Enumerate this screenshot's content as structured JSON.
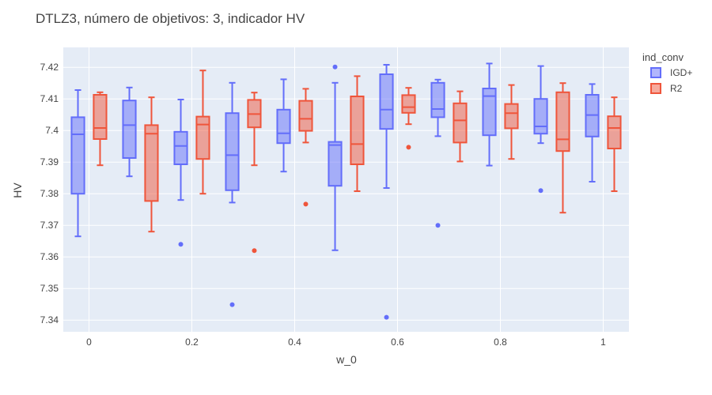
{
  "chart_data": {
    "type": "box",
    "title": "DTLZ3, número de objetivos: 3, indicador HV",
    "xlabel": "w_0",
    "ylabel": "HV",
    "x_ticks": [
      0,
      0.2,
      0.4,
      0.6,
      0.8,
      1
    ],
    "x_tick_labels": [
      "0",
      "0.2",
      "0.4",
      "0.6",
      "0.8",
      "1"
    ],
    "y_ticks": [
      7.34,
      7.35,
      7.36,
      7.37,
      7.38,
      7.39,
      7.4,
      7.41,
      7.42
    ],
    "y_tick_labels": [
      "7.34",
      "7.35",
      "7.36",
      "7.37",
      "7.38",
      "7.39",
      "7.4",
      "7.41",
      "7.42"
    ],
    "xlim": [
      -0.05,
      1.05
    ],
    "ylim": [
      7.3363,
      7.4263
    ],
    "grid": true,
    "legend": {
      "title": "ind_conv",
      "position": "top-right"
    },
    "categories": [
      0,
      0.1,
      0.2,
      0.3,
      0.4,
      0.5,
      0.6,
      0.7,
      0.8,
      0.9,
      1
    ],
    "series": [
      {
        "name": "IGD+",
        "color": "#636EFA",
        "fill": "rgba(99,110,250,0.5)",
        "boxes": [
          {
            "x": 0,
            "lower": 7.3665,
            "q1": 7.38,
            "median": 7.3988,
            "q3": 7.4042,
            "upper": 7.4128,
            "outliers": []
          },
          {
            "x": 0.1,
            "lower": 7.3855,
            "q1": 7.3913,
            "median": 7.4017,
            "q3": 7.4095,
            "upper": 7.4136,
            "outliers": []
          },
          {
            "x": 0.2,
            "lower": 7.378,
            "q1": 7.3893,
            "median": 7.3951,
            "q3": 7.3996,
            "upper": 7.4098,
            "outliers": [
              7.364
            ]
          },
          {
            "x": 0.3,
            "lower": 7.3772,
            "q1": 7.3811,
            "median": 7.3922,
            "q3": 7.4055,
            "upper": 7.4151,
            "outliers": [
              7.3449
            ]
          },
          {
            "x": 0.4,
            "lower": 7.387,
            "q1": 7.396,
            "median": 7.3991,
            "q3": 7.4066,
            "upper": 7.4162,
            "outliers": []
          },
          {
            "x": 0.5,
            "lower": 7.3621,
            "q1": 7.3825,
            "median": 7.3954,
            "q3": 7.3964,
            "upper": 7.4151,
            "outliers": [
              7.4201
            ]
          },
          {
            "x": 0.6,
            "lower": 7.3818,
            "q1": 7.4005,
            "median": 7.4066,
            "q3": 7.4178,
            "upper": 7.4208,
            "outliers": [
              7.3409
            ]
          },
          {
            "x": 0.7,
            "lower": 7.3982,
            "q1": 7.4042,
            "median": 7.4068,
            "q3": 7.4151,
            "upper": 7.4161,
            "outliers": [
              7.37
            ]
          },
          {
            "x": 0.8,
            "lower": 7.3889,
            "q1": 7.3985,
            "median": 7.4109,
            "q3": 7.4133,
            "upper": 7.4212,
            "outliers": []
          },
          {
            "x": 0.9,
            "lower": 7.396,
            "q1": 7.399,
            "median": 7.4013,
            "q3": 7.41,
            "upper": 7.4204,
            "outliers": [
              7.381
            ]
          },
          {
            "x": 1,
            "lower": 7.3838,
            "q1": 7.3981,
            "median": 7.4049,
            "q3": 7.4113,
            "upper": 7.4147,
            "outliers": []
          }
        ]
      },
      {
        "name": "R2",
        "color": "#EF553B",
        "fill": "rgba(239,85,59,0.5)",
        "boxes": [
          {
            "x": 0,
            "lower": 7.389,
            "q1": 7.3973,
            "median": 7.4008,
            "q3": 7.4113,
            "upper": 7.4121,
            "outliers": []
          },
          {
            "x": 0.1,
            "lower": 7.368,
            "q1": 7.3777,
            "median": 7.399,
            "q3": 7.4017,
            "upper": 7.4105,
            "outliers": []
          },
          {
            "x": 0.2,
            "lower": 7.38,
            "q1": 7.391,
            "median": 7.4019,
            "q3": 7.4044,
            "upper": 7.419,
            "outliers": []
          },
          {
            "x": 0.3,
            "lower": 7.389,
            "q1": 7.401,
            "median": 7.4052,
            "q3": 7.4097,
            "upper": 7.412,
            "outliers": [
              7.362
            ]
          },
          {
            "x": 0.4,
            "lower": 7.3962,
            "q1": 7.3999,
            "median": 7.4037,
            "q3": 7.4094,
            "upper": 7.4132,
            "outliers": [
              7.3767
            ]
          },
          {
            "x": 0.5,
            "lower": 7.3808,
            "q1": 7.3893,
            "median": 7.3957,
            "q3": 7.4108,
            "upper": 7.4172,
            "outliers": []
          },
          {
            "x": 0.6,
            "lower": 7.402,
            "q1": 7.4056,
            "median": 7.4074,
            "q3": 7.4112,
            "upper": 7.4135,
            "outliers": [
              7.3947
            ]
          },
          {
            "x": 0.7,
            "lower": 7.3902,
            "q1": 7.3962,
            "median": 7.4032,
            "q3": 7.4086,
            "upper": 7.4124,
            "outliers": []
          },
          {
            "x": 0.8,
            "lower": 7.391,
            "q1": 7.4007,
            "median": 7.4055,
            "q3": 7.4084,
            "upper": 7.4144,
            "outliers": []
          },
          {
            "x": 0.9,
            "lower": 7.374,
            "q1": 7.3935,
            "median": 7.3972,
            "q3": 7.4121,
            "upper": 7.415,
            "outliers": []
          },
          {
            "x": 1,
            "lower": 7.3808,
            "q1": 7.3943,
            "median": 7.4008,
            "q3": 7.4045,
            "upper": 7.4105,
            "outliers": []
          }
        ]
      }
    ]
  }
}
